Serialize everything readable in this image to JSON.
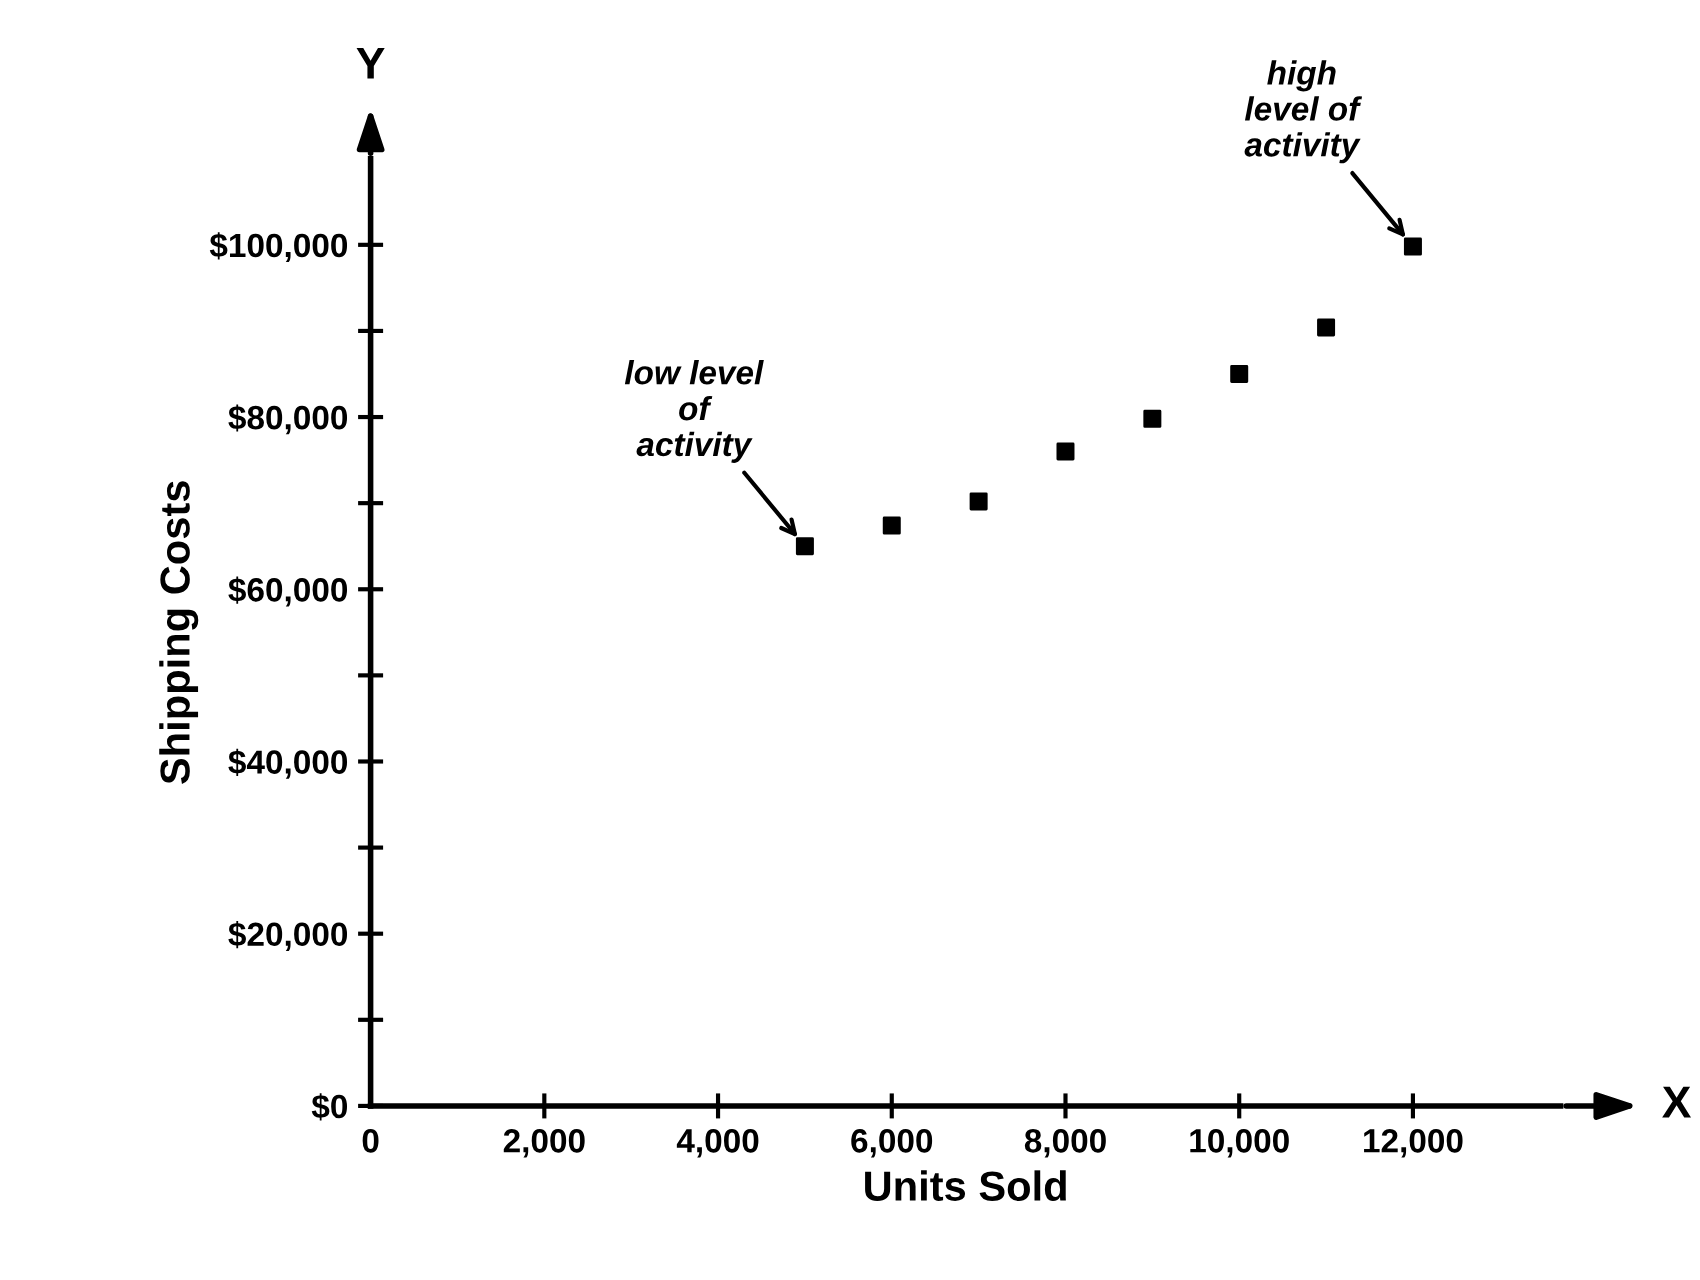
{
  "chart_data": {
    "type": "scatter",
    "xlabel": "Units Sold",
    "ylabel": "Shipping Costs",
    "x": [
      5000,
      6000,
      7000,
      8000,
      9000,
      10000,
      11000,
      12000
    ],
    "values": [
      65000,
      67400,
      70200,
      76000,
      79800,
      85000,
      90400,
      99800
    ],
    "color": "#000000",
    "marker": "square",
    "grid": false,
    "legend": false,
    "xlim": [
      0,
      13700
    ],
    "ylim": [
      0,
      110000
    ],
    "xticks": [
      {
        "value": 0,
        "label": "0"
      },
      {
        "value": 2000,
        "label": "2,000"
      },
      {
        "value": 4000,
        "label": "4,000"
      },
      {
        "value": 6000,
        "label": "6,000"
      },
      {
        "value": 8000,
        "label": "8,000"
      },
      {
        "value": 10000,
        "label": "10,000"
      },
      {
        "value": 12000,
        "label": "12,000"
      }
    ],
    "yticks": [
      {
        "value": 0,
        "label": "$0"
      },
      {
        "value": 10000,
        "label": null
      },
      {
        "value": 20000,
        "label": "$20,000"
      },
      {
        "value": 30000,
        "label": null
      },
      {
        "value": 40000,
        "label": "$40,000"
      },
      {
        "value": 50000,
        "label": null
      },
      {
        "value": 60000,
        "label": "$60,000"
      },
      {
        "value": 70000,
        "label": null
      },
      {
        "value": 80000,
        "label": "$80,000"
      },
      {
        "value": 90000,
        "label": null
      },
      {
        "value": 100000,
        "label": "$100,000"
      }
    ],
    "annotations": [
      {
        "text": "low level\nof\nactivity",
        "x": 5000,
        "y": 65000
      },
      {
        "text": "high\nlevel of\nactivity",
        "x": 12000,
        "y": 99800
      },
      "X",
      "Y"
    ]
  }
}
